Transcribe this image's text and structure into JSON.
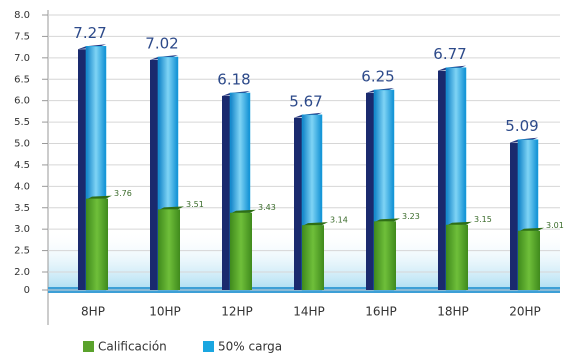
{
  "chart_data": {
    "type": "bar",
    "categories": [
      "8HP",
      "10HP",
      "12HP",
      "14HP",
      "16HP",
      "18HP",
      "20HP"
    ],
    "series": [
      {
        "name": "Calificación",
        "color": "#5aa22c",
        "values": [
          3.76,
          3.51,
          3.43,
          3.14,
          3.23,
          3.15,
          3.01
        ]
      },
      {
        "name": "50% carga",
        "color": "#1aa6e0",
        "values": [
          7.27,
          7.02,
          6.18,
          5.67,
          6.25,
          6.77,
          5.09
        ]
      }
    ],
    "ylim": [
      0,
      8
    ],
    "axis_break": [
      0,
      2
    ],
    "yticks": [
      {
        "value": 0,
        "label": "0"
      },
      {
        "value": 2,
        "label": "2.0"
      },
      {
        "value": 2.5,
        "label": "2.5"
      },
      {
        "value": 3,
        "label": "3.0"
      },
      {
        "value": 3.5,
        "label": "3.5"
      },
      {
        "value": 4,
        "label": "4.0"
      },
      {
        "value": 4.5,
        "label": "4.5"
      },
      {
        "value": 5,
        "label": "5.0"
      },
      {
        "value": 5.5,
        "label": "5.5"
      },
      {
        "value": 6,
        "label": "6.0"
      },
      {
        "value": 6.5,
        "label": "6.5"
      },
      {
        "value": 7,
        "label": "7.0"
      },
      {
        "value": 7.5,
        "label": "7.5"
      },
      {
        "value": 8,
        "label": "8.0"
      }
    ],
    "grid": true,
    "legend": "bottom"
  }
}
